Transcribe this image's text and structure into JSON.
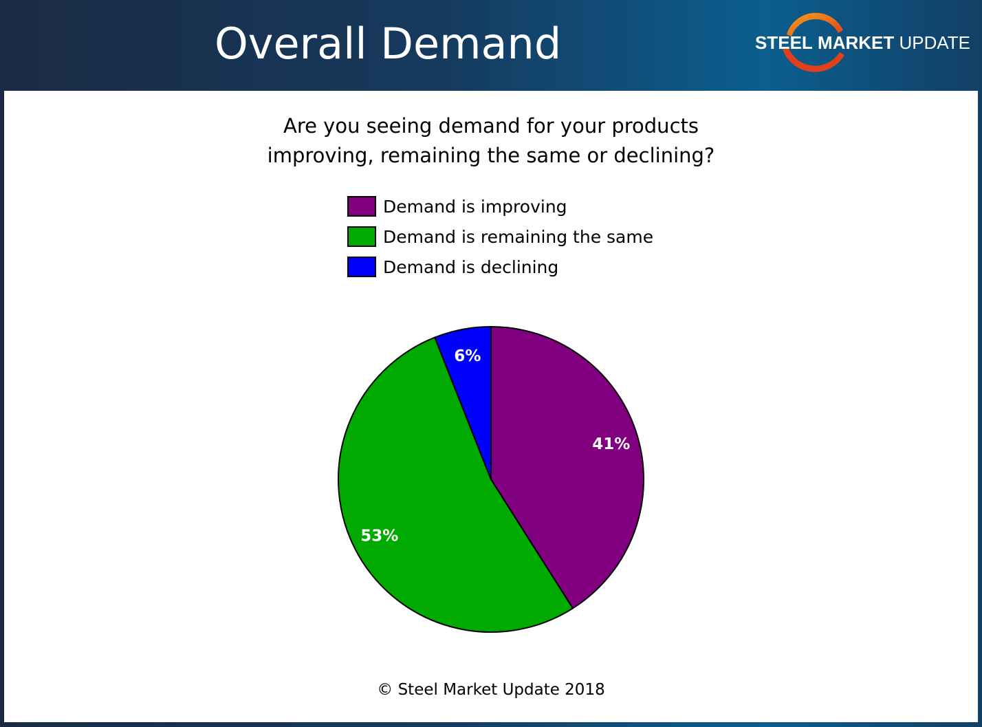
{
  "header": {
    "title": "Overall Demand",
    "logo": {
      "word1": "STEEL",
      "word2": "MARKET",
      "word3": "UPDATE"
    }
  },
  "chart_data": {
    "type": "pie",
    "title": "Are you seeing demand for your products improving, remaining the same or declining?",
    "title_lines": [
      "Are you seeing demand for your products",
      "improving, remaining the same or declining?"
    ],
    "legend_position": "top-center",
    "slices": [
      {
        "label": "Demand is improving",
        "value": 41,
        "display": "41%",
        "color": "#800080"
      },
      {
        "label": "Demand is remaining the same",
        "value": 53,
        "display": "53%",
        "color": "#00AA00"
      },
      {
        "label": "Demand is declining",
        "value": 6,
        "display": "6%",
        "color": "#0000FF"
      }
    ],
    "start": "12 o'clock",
    "direction": "clockwise"
  },
  "footer": {
    "copyright": "© Steel Market Update 2018"
  }
}
